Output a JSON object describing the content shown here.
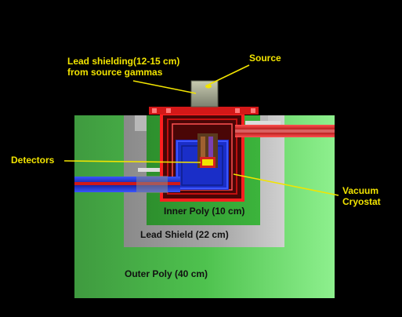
{
  "labels": {
    "lead_shielding_line1": "Lead shielding(12-15 cm)",
    "lead_shielding_line2": "from source gammas",
    "source": "Source",
    "detectors": "Detectors",
    "vacuum_line1": "Vacuum",
    "vacuum_line2": "Cryostat",
    "inner_poly": "Inner Poly (10 cm)",
    "lead_shield": "Lead Shield (22 cm)",
    "outer_poly": "Outer Poly (40 cm)"
  },
  "colors": {
    "background": "#000000",
    "label_text": "#f2e400",
    "outer_poly": "#5fd65f",
    "lead_shield": "#9a9a9a",
    "inner_poly": "#2fa62f",
    "cryostat_wall": "#d41010",
    "vacuum_blue": "#1a2ec8",
    "pointer_line": "#f2e400"
  }
}
